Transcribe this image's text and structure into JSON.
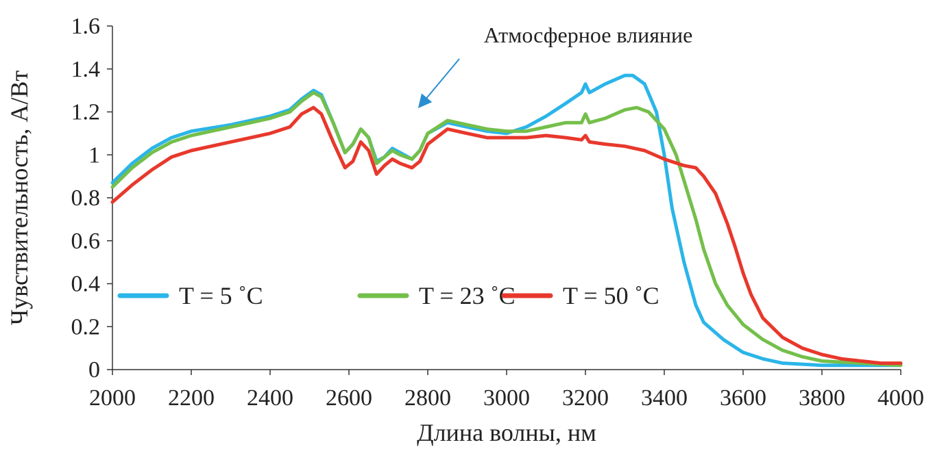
{
  "chart_data": {
    "type": "line",
    "title": "",
    "xlabel": "Длина волны, нм",
    "ylabel": "Чувствительность, А/Вт",
    "xlim": [
      2000,
      4000
    ],
    "ylim": [
      0,
      1.6
    ],
    "x_ticks": [
      "2000",
      "2200",
      "2400",
      "2600",
      "2800",
      "3000",
      "3200",
      "3400",
      "3600",
      "3800",
      "4000"
    ],
    "y_ticks": [
      "0",
      "0.2",
      "0.4",
      "0.6",
      "0.8",
      "1",
      "1.2",
      "1.4",
      "1.6"
    ],
    "grid": false,
    "legend_position": "bottom-center",
    "annotation": {
      "text": "Атмосферное влияние",
      "target_x": 2780,
      "target_y": 1.22
    },
    "series": [
      {
        "name": "T = 5 ˚C",
        "color": "#2bb5e8",
        "points": [
          [
            2000,
            0.87
          ],
          [
            2050,
            0.96
          ],
          [
            2100,
            1.03
          ],
          [
            2150,
            1.08
          ],
          [
            2200,
            1.11
          ],
          [
            2300,
            1.14
          ],
          [
            2400,
            1.18
          ],
          [
            2450,
            1.21
          ],
          [
            2480,
            1.26
          ],
          [
            2510,
            1.3
          ],
          [
            2530,
            1.28
          ],
          [
            2560,
            1.15
          ],
          [
            2590,
            1.01
          ],
          [
            2610,
            1.05
          ],
          [
            2630,
            1.12
          ],
          [
            2650,
            1.08
          ],
          [
            2670,
            0.97
          ],
          [
            2690,
            0.99
          ],
          [
            2710,
            1.03
          ],
          [
            2730,
            1.01
          ],
          [
            2760,
            0.98
          ],
          [
            2780,
            1.02
          ],
          [
            2800,
            1.1
          ],
          [
            2850,
            1.15
          ],
          [
            2900,
            1.13
          ],
          [
            2950,
            1.11
          ],
          [
            3000,
            1.1
          ],
          [
            3050,
            1.13
          ],
          [
            3100,
            1.18
          ],
          [
            3150,
            1.24
          ],
          [
            3190,
            1.29
          ],
          [
            3200,
            1.33
          ],
          [
            3210,
            1.29
          ],
          [
            3250,
            1.33
          ],
          [
            3300,
            1.37
          ],
          [
            3320,
            1.37
          ],
          [
            3350,
            1.33
          ],
          [
            3380,
            1.2
          ],
          [
            3400,
            1.0
          ],
          [
            3420,
            0.75
          ],
          [
            3450,
            0.5
          ],
          [
            3480,
            0.3
          ],
          [
            3500,
            0.22
          ],
          [
            3550,
            0.14
          ],
          [
            3600,
            0.08
          ],
          [
            3650,
            0.05
          ],
          [
            3700,
            0.03
          ],
          [
            3800,
            0.02
          ],
          [
            3900,
            0.02
          ],
          [
            4000,
            0.02
          ]
        ]
      },
      {
        "name": "T = 23 ˚C",
        "color": "#74bf4b",
        "points": [
          [
            2000,
            0.85
          ],
          [
            2050,
            0.94
          ],
          [
            2100,
            1.01
          ],
          [
            2150,
            1.06
          ],
          [
            2200,
            1.09
          ],
          [
            2300,
            1.13
          ],
          [
            2400,
            1.17
          ],
          [
            2450,
            1.2
          ],
          [
            2480,
            1.25
          ],
          [
            2510,
            1.29
          ],
          [
            2530,
            1.27
          ],
          [
            2560,
            1.15
          ],
          [
            2590,
            1.01
          ],
          [
            2610,
            1.05
          ],
          [
            2630,
            1.12
          ],
          [
            2650,
            1.08
          ],
          [
            2670,
            0.96
          ],
          [
            2690,
            0.99
          ],
          [
            2710,
            1.02
          ],
          [
            2730,
            1.0
          ],
          [
            2760,
            0.98
          ],
          [
            2780,
            1.02
          ],
          [
            2800,
            1.1
          ],
          [
            2850,
            1.16
          ],
          [
            2900,
            1.14
          ],
          [
            2950,
            1.12
          ],
          [
            3000,
            1.11
          ],
          [
            3050,
            1.11
          ],
          [
            3100,
            1.13
          ],
          [
            3150,
            1.15
          ],
          [
            3190,
            1.15
          ],
          [
            3200,
            1.19
          ],
          [
            3210,
            1.15
          ],
          [
            3250,
            1.17
          ],
          [
            3300,
            1.21
          ],
          [
            3330,
            1.22
          ],
          [
            3360,
            1.2
          ],
          [
            3400,
            1.12
          ],
          [
            3430,
            1.0
          ],
          [
            3450,
            0.88
          ],
          [
            3480,
            0.7
          ],
          [
            3500,
            0.56
          ],
          [
            3530,
            0.4
          ],
          [
            3560,
            0.3
          ],
          [
            3600,
            0.21
          ],
          [
            3650,
            0.14
          ],
          [
            3700,
            0.09
          ],
          [
            3750,
            0.06
          ],
          [
            3800,
            0.04
          ],
          [
            3900,
            0.03
          ],
          [
            4000,
            0.02
          ]
        ]
      },
      {
        "name": "T = 50 ˚C",
        "color": "#e8382c",
        "points": [
          [
            2000,
            0.78
          ],
          [
            2050,
            0.86
          ],
          [
            2100,
            0.93
          ],
          [
            2150,
            0.99
          ],
          [
            2200,
            1.02
          ],
          [
            2300,
            1.06
          ],
          [
            2400,
            1.1
          ],
          [
            2450,
            1.13
          ],
          [
            2480,
            1.19
          ],
          [
            2510,
            1.22
          ],
          [
            2530,
            1.19
          ],
          [
            2560,
            1.06
          ],
          [
            2590,
            0.94
          ],
          [
            2610,
            0.97
          ],
          [
            2630,
            1.06
          ],
          [
            2650,
            1.02
          ],
          [
            2670,
            0.91
          ],
          [
            2690,
            0.95
          ],
          [
            2710,
            0.98
          ],
          [
            2730,
            0.96
          ],
          [
            2760,
            0.94
          ],
          [
            2780,
            0.97
          ],
          [
            2800,
            1.05
          ],
          [
            2850,
            1.12
          ],
          [
            2900,
            1.1
          ],
          [
            2950,
            1.08
          ],
          [
            3000,
            1.08
          ],
          [
            3050,
            1.08
          ],
          [
            3100,
            1.09
          ],
          [
            3150,
            1.08
          ],
          [
            3190,
            1.07
          ],
          [
            3200,
            1.09
          ],
          [
            3210,
            1.06
          ],
          [
            3250,
            1.05
          ],
          [
            3300,
            1.04
          ],
          [
            3350,
            1.02
          ],
          [
            3400,
            0.98
          ],
          [
            3450,
            0.95
          ],
          [
            3480,
            0.94
          ],
          [
            3500,
            0.9
          ],
          [
            3530,
            0.82
          ],
          [
            3560,
            0.68
          ],
          [
            3580,
            0.57
          ],
          [
            3600,
            0.45
          ],
          [
            3620,
            0.35
          ],
          [
            3650,
            0.24
          ],
          [
            3700,
            0.15
          ],
          [
            3750,
            0.1
          ],
          [
            3800,
            0.07
          ],
          [
            3850,
            0.05
          ],
          [
            3900,
            0.04
          ],
          [
            3950,
            0.03
          ],
          [
            4000,
            0.03
          ]
        ]
      }
    ]
  }
}
